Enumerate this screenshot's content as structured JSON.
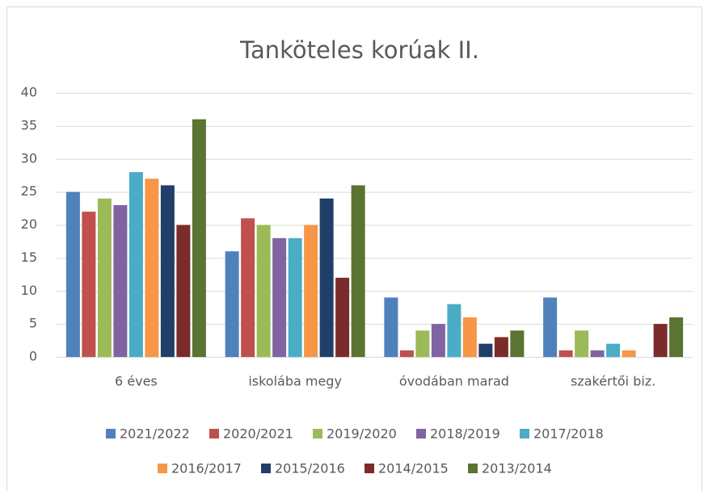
{
  "chart_data": {
    "type": "bar",
    "title": "Tanköteles korúak  II.",
    "categories": [
      "6 éves",
      "iskolába megy",
      "óvodában marad",
      "szakértői biz."
    ],
    "series": [
      {
        "name": "2021/2022",
        "color": "#4f81bd",
        "values": [
          25,
          16,
          9,
          9
        ]
      },
      {
        "name": "2020/2021",
        "color": "#c0504d",
        "values": [
          22,
          21,
          1,
          1
        ]
      },
      {
        "name": "2019/2020",
        "color": "#9bbb59",
        "values": [
          24,
          20,
          4,
          4
        ]
      },
      {
        "name": "2018/2019",
        "color": "#8064a2",
        "values": [
          23,
          18,
          5,
          1
        ]
      },
      {
        "name": "2017/2018",
        "color": "#4bacc6",
        "values": [
          28,
          18,
          8,
          2
        ]
      },
      {
        "name": "2016/2017",
        "color": "#f79646",
        "values": [
          27,
          20,
          6,
          1
        ]
      },
      {
        "name": "2015/2016",
        "color": "#1f3f68",
        "values": [
          26,
          24,
          2,
          0
        ]
      },
      {
        "name": "2014/2015",
        "color": "#7b2c2a",
        "values": [
          20,
          12,
          3,
          5
        ]
      },
      {
        "name": "2013/2014",
        "color": "#5a7431",
        "values": [
          36,
          26,
          4,
          6
        ]
      }
    ],
    "ylim": [
      0,
      40
    ],
    "yticks": [
      0,
      5,
      10,
      15,
      20,
      25,
      30,
      35,
      40
    ],
    "grid": true,
    "legend": "bottom"
  }
}
